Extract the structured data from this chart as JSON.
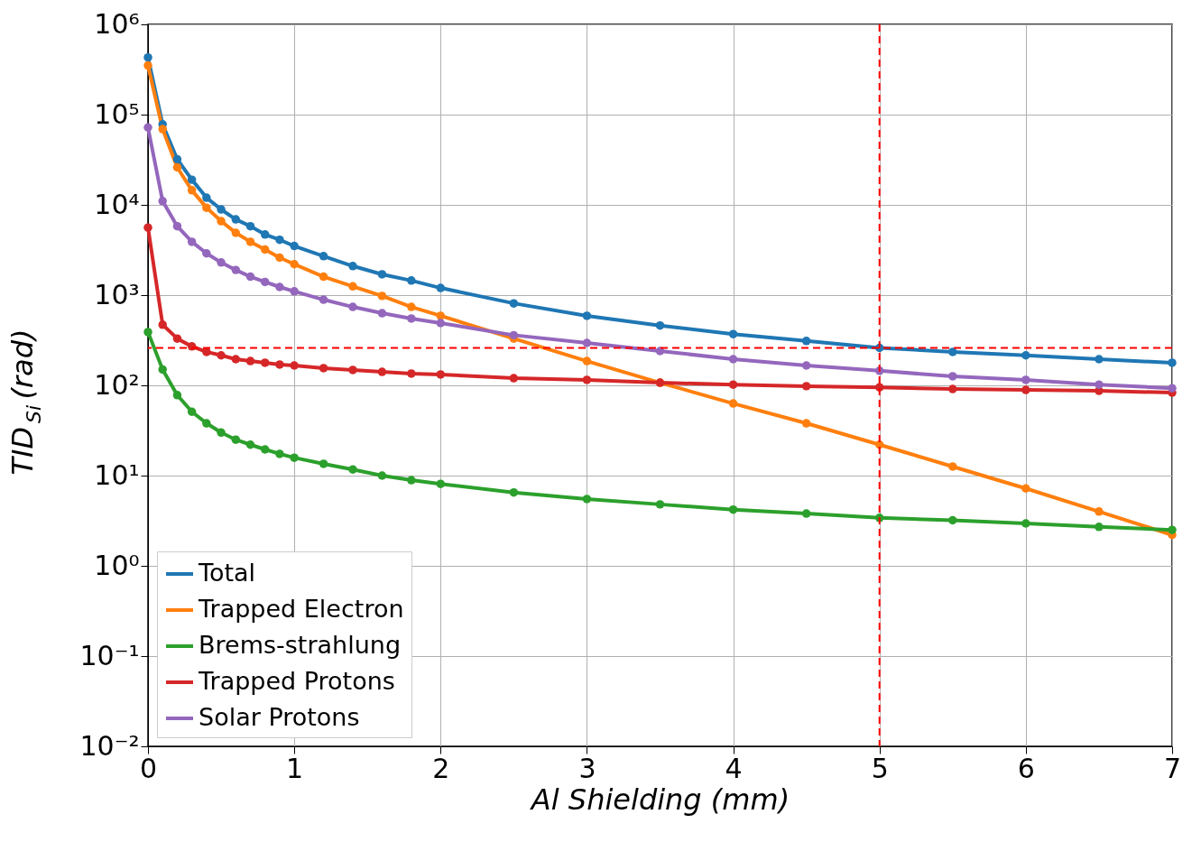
{
  "chart_data": {
    "type": "line",
    "xlabel": "Al Shielding (mm)",
    "ylabel": "TID$_{Si}$ (rad)",
    "x": [
      0,
      0.1,
      0.2,
      0.3,
      0.4,
      0.5,
      0.6,
      0.7,
      0.8,
      0.9,
      1.0,
      1.2,
      1.4,
      1.6,
      1.8,
      2.0,
      2.5,
      3,
      3.5,
      4,
      4.5,
      5,
      5.5,
      6,
      6.5,
      7
    ],
    "series": [
      {
        "name": "Total",
        "color": "#1f77b4",
        "values": [
          430000,
          78000,
          32000,
          19000,
          12000,
          8900,
          6900,
          5800,
          4700,
          4100,
          3500,
          2700,
          2100,
          1700,
          1450,
          1200,
          810,
          590,
          460,
          370,
          310,
          260,
          235,
          215,
          195,
          178
        ]
      },
      {
        "name": "Trapped Electron",
        "color": "#ff7f0e",
        "values": [
          350000,
          69000,
          26000,
          14500,
          9300,
          6600,
          4900,
          3900,
          3200,
          2600,
          2200,
          1600,
          1250,
          980,
          740,
          590,
          330,
          186,
          107,
          63,
          38,
          22,
          12.6,
          7.2,
          4.0,
          2.2
        ]
      },
      {
        "name": "Brems-strahlung",
        "color": "#2ca02c",
        "values": [
          390,
          150,
          78,
          51,
          38,
          30,
          25,
          22,
          19.5,
          17.4,
          15.8,
          13.5,
          11.7,
          10,
          8.9,
          8.1,
          6.5,
          5.5,
          4.8,
          4.2,
          3.8,
          3.4,
          3.2,
          2.95,
          2.7,
          2.5
        ]
      },
      {
        "name": "Trapped Protons",
        "color": "#d62728",
        "values": [
          5600,
          470,
          330,
          270,
          235,
          215,
          195,
          186,
          178,
          170,
          166,
          155,
          148,
          141,
          135,
          132,
          120,
          115,
          107,
          102,
          98,
          95,
          91,
          89,
          87,
          83
        ]
      },
      {
        "name": "Solar Protons",
        "color": "#9467bd",
        "values": [
          72000,
          11000,
          5800,
          3900,
          2900,
          2300,
          1900,
          1600,
          1400,
          1230,
          1100,
          890,
          740,
          630,
          550,
          490,
          360,
          295,
          240,
          195,
          166,
          145,
          126,
          115,
          102,
          93
        ]
      }
    ],
    "xlim": [
      0,
      7
    ],
    "xticks": [
      0,
      1,
      2,
      3,
      4,
      5,
      6,
      7
    ],
    "log": "y",
    "ylim": [
      0.01,
      1000000
    ],
    "yticks": [
      {
        "value": 0.01,
        "label": "10⁻²"
      },
      {
        "value": 0.1,
        "label": "10⁻¹"
      },
      {
        "value": 1,
        "label": "10⁰"
      },
      {
        "value": 10,
        "label": "10¹"
      },
      {
        "value": 100,
        "label": "10²"
      },
      {
        "value": 1000,
        "label": "10³"
      },
      {
        "value": 10000,
        "label": "10⁴"
      },
      {
        "value": 100000,
        "label": "10⁵"
      },
      {
        "value": 1000000,
        "label": "10⁶"
      }
    ],
    "ref_lines": [
      {
        "axis": "x",
        "value": 5,
        "color": "#ff0000",
        "line_style": "dashed"
      },
      {
        "axis": "y",
        "value": 260,
        "color": "#ff0000",
        "line_style": "dashed"
      }
    ],
    "grid": true,
    "legend": "bottom left",
    "marker": "circle",
    "line_style": "solid"
  }
}
